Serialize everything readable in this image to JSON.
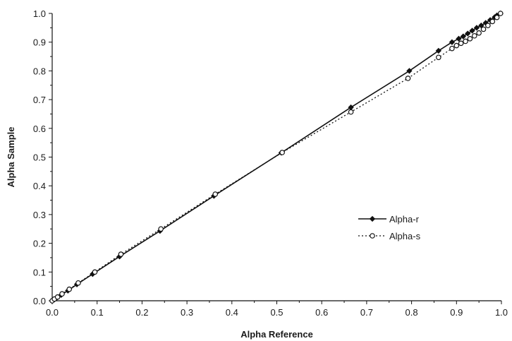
{
  "chart_data": {
    "type": "line",
    "title": "",
    "xlabel": "Alpha Reference",
    "ylabel": "Alpha Sample",
    "xlim": [
      0.0,
      1.0
    ],
    "ylim": [
      0.0,
      1.0
    ],
    "x_ticks": [
      "0.0",
      "0.1",
      "0.2",
      "0.3",
      "0.4",
      "0.5",
      "0.6",
      "0.7",
      "0.8",
      "0.9",
      "1.0"
    ],
    "y_ticks": [
      "0.0",
      "0.1",
      "0.2",
      "0.3",
      "0.4",
      "0.5",
      "0.6",
      "0.7",
      "0.8",
      "0.9",
      "1.0"
    ],
    "grid": false,
    "legend_position": "right-middle",
    "series": [
      {
        "name": "Alpha-r",
        "line_style": "solid",
        "marker": "filled-diamond",
        "color": "#111111",
        "points": [
          [
            0.0,
            0.0
          ],
          [
            0.005,
            0.005
          ],
          [
            0.01,
            0.01
          ],
          [
            0.02,
            0.02
          ],
          [
            0.035,
            0.035
          ],
          [
            0.055,
            0.057
          ],
          [
            0.09,
            0.093
          ],
          [
            0.15,
            0.154
          ],
          [
            0.24,
            0.243
          ],
          [
            0.36,
            0.365
          ],
          [
            0.51,
            0.515
          ],
          [
            0.665,
            0.673
          ],
          [
            0.795,
            0.8
          ],
          [
            0.86,
            0.87
          ],
          [
            0.89,
            0.9
          ],
          [
            0.905,
            0.912
          ],
          [
            0.915,
            0.92
          ],
          [
            0.925,
            0.93
          ],
          [
            0.935,
            0.94
          ],
          [
            0.945,
            0.95
          ],
          [
            0.955,
            0.958
          ],
          [
            0.965,
            0.967
          ],
          [
            0.975,
            0.977
          ],
          [
            0.985,
            0.987
          ],
          [
            0.99,
            0.993
          ],
          [
            0.998,
            1.0
          ]
        ]
      },
      {
        "name": "Alpha-s",
        "line_style": "dotted",
        "marker": "open-circle",
        "color": "#111111",
        "points": [
          [
            0.0,
            0.0
          ],
          [
            0.005,
            0.006
          ],
          [
            0.012,
            0.013
          ],
          [
            0.022,
            0.024
          ],
          [
            0.038,
            0.04
          ],
          [
            0.058,
            0.062
          ],
          [
            0.095,
            0.1
          ],
          [
            0.153,
            0.162
          ],
          [
            0.242,
            0.25
          ],
          [
            0.363,
            0.371
          ],
          [
            0.512,
            0.516
          ],
          [
            0.665,
            0.657
          ],
          [
            0.792,
            0.774
          ],
          [
            0.86,
            0.847
          ],
          [
            0.89,
            0.878
          ],
          [
            0.9,
            0.888
          ],
          [
            0.91,
            0.896
          ],
          [
            0.92,
            0.903
          ],
          [
            0.93,
            0.912
          ],
          [
            0.94,
            0.922
          ],
          [
            0.95,
            0.932
          ],
          [
            0.96,
            0.945
          ],
          [
            0.97,
            0.958
          ],
          [
            0.98,
            0.972
          ],
          [
            0.99,
            0.986
          ],
          [
            0.998,
            1.0
          ]
        ]
      }
    ]
  }
}
